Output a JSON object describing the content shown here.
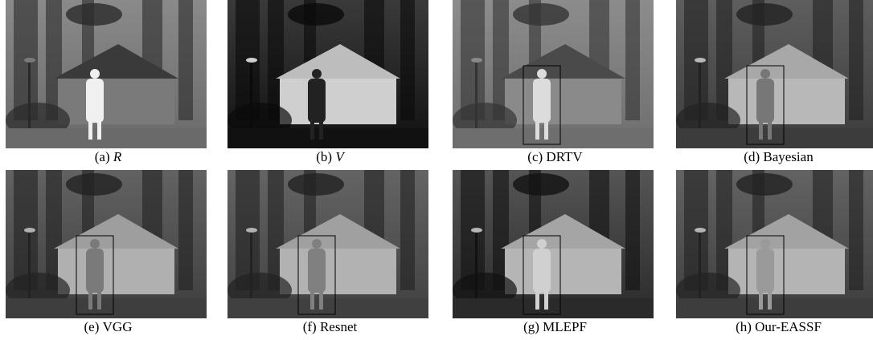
{
  "panels": [
    {
      "tag": "(a)",
      "name": "R",
      "italic": true
    },
    {
      "tag": "(b)",
      "name": "V",
      "italic": true
    },
    {
      "tag": "(c)",
      "name": "DRTV",
      "italic": false
    },
    {
      "tag": "(d)",
      "name": "Bayesian",
      "italic": false
    },
    {
      "tag": "(e)",
      "name": "VGG",
      "italic": false
    },
    {
      "tag": "(f)",
      "name": "Resnet",
      "italic": false
    },
    {
      "tag": "(g)",
      "name": "MLEPF",
      "italic": false
    },
    {
      "tag": "(h)",
      "name": "Our-EASSF",
      "italic": false
    }
  ]
}
